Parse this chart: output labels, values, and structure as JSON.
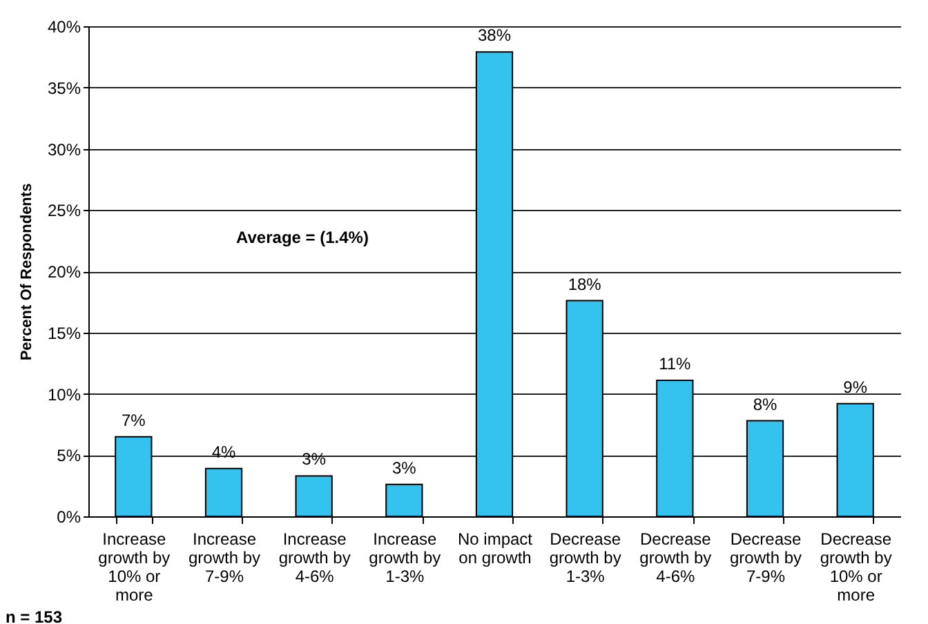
{
  "chart_data": {
    "type": "bar",
    "ylabel": "Percent Of Respondents",
    "categories": [
      "Increase growth by 10% or more",
      "Increase growth by 7-9%",
      "Increase growth by 4-6%",
      "Increase growth by 1-3%",
      "No impact on growth",
      "Decrease growth by 1-3%",
      "Decrease growth by 4-6%",
      "Decrease growth by 7-9%",
      "Decrease growth by 10% or more"
    ],
    "values": [
      6.5,
      3.9,
      3.3,
      2.6,
      37.9,
      17.6,
      11.1,
      7.8,
      9.2
    ],
    "value_labels": [
      "7%",
      "4%",
      "3%",
      "3%",
      "38%",
      "18%",
      "11%",
      "8%",
      "9%"
    ],
    "color": "#33c3ee",
    "ylim": [
      0,
      40
    ],
    "yticks": [
      {
        "value": 0,
        "label": "0%"
      },
      {
        "value": 5,
        "label": "5%"
      },
      {
        "value": 10,
        "label": "10%"
      },
      {
        "value": 15,
        "label": "15%"
      },
      {
        "value": 20,
        "label": "20%"
      },
      {
        "value": 25,
        "label": "25%"
      },
      {
        "value": 30,
        "label": "30%"
      },
      {
        "value": 35,
        "label": "35%"
      },
      {
        "value": 40,
        "label": "40%"
      }
    ],
    "grid": "y",
    "annotations": [
      "Average = (1.4%)",
      "n = 153"
    ]
  }
}
